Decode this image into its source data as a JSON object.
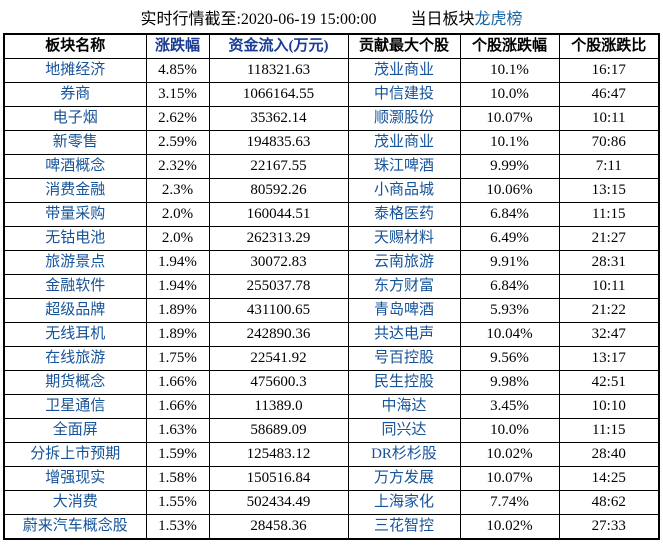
{
  "titlebar": {
    "quote_time_label": "实时行情截至:2020-06-19 15:00:00",
    "board_prefix": "当日板块",
    "board_link": "龙虎榜"
  },
  "colors": {
    "name_link_blue": "#15539A",
    "sorted_header_navy": "#1B3C94",
    "title_link_blue": "#1666A6",
    "border_black": "#000000",
    "background": "#ffffff"
  },
  "table": {
    "columns": [
      {
        "key": "sector",
        "label": "板块名称",
        "sorted": false
      },
      {
        "key": "change",
        "label": "涨跌幅",
        "sorted": true
      },
      {
        "key": "inflow",
        "label": "资金流入(万元)",
        "sorted": true
      },
      {
        "key": "top_stock",
        "label": "贡献最大个股",
        "sorted": false
      },
      {
        "key": "stock_change",
        "label": "个股涨跌幅",
        "sorted": false
      },
      {
        "key": "ratio",
        "label": "个股涨跌比",
        "sorted": false
      }
    ],
    "rows": [
      {
        "sector": "地摊经济",
        "change": "4.85%",
        "inflow": "118321.63",
        "top_stock": "茂业商业",
        "stock_change": "10.1%",
        "ratio": "16:17"
      },
      {
        "sector": "券商",
        "change": "3.15%",
        "inflow": "1066164.55",
        "top_stock": "中信建投",
        "stock_change": "10.0%",
        "ratio": "46:47"
      },
      {
        "sector": "电子烟",
        "change": "2.62%",
        "inflow": "35362.14",
        "top_stock": "顺灏股份",
        "stock_change": "10.07%",
        "ratio": "10:11"
      },
      {
        "sector": "新零售",
        "change": "2.59%",
        "inflow": "194835.63",
        "top_stock": "茂业商业",
        "stock_change": "10.1%",
        "ratio": "70:86"
      },
      {
        "sector": "啤酒概念",
        "change": "2.32%",
        "inflow": "22167.55",
        "top_stock": "珠江啤酒",
        "stock_change": "9.99%",
        "ratio": "7:11"
      },
      {
        "sector": "消费金融",
        "change": "2.3%",
        "inflow": "80592.26",
        "top_stock": "小商品城",
        "stock_change": "10.06%",
        "ratio": "13:15"
      },
      {
        "sector": "带量采购",
        "change": "2.0%",
        "inflow": "160044.51",
        "top_stock": "泰格医药",
        "stock_change": "6.84%",
        "ratio": "11:15"
      },
      {
        "sector": "无钴电池",
        "change": "2.0%",
        "inflow": "262313.29",
        "top_stock": "天赐材料",
        "stock_change": "6.49%",
        "ratio": "21:27"
      },
      {
        "sector": "旅游景点",
        "change": "1.94%",
        "inflow": "30072.83",
        "top_stock": "云南旅游",
        "stock_change": "9.91%",
        "ratio": "28:31"
      },
      {
        "sector": "金融软件",
        "change": "1.94%",
        "inflow": "255037.78",
        "top_stock": "东方财富",
        "stock_change": "6.84%",
        "ratio": "10:11"
      },
      {
        "sector": "超级品牌",
        "change": "1.89%",
        "inflow": "431100.65",
        "top_stock": "青岛啤酒",
        "stock_change": "5.93%",
        "ratio": "21:22"
      },
      {
        "sector": "无线耳机",
        "change": "1.89%",
        "inflow": "242890.36",
        "top_stock": "共达电声",
        "stock_change": "10.04%",
        "ratio": "32:47"
      },
      {
        "sector": "在线旅游",
        "change": "1.75%",
        "inflow": "22541.92",
        "top_stock": "号百控股",
        "stock_change": "9.56%",
        "ratio": "13:17"
      },
      {
        "sector": "期货概念",
        "change": "1.66%",
        "inflow": "475600.3",
        "top_stock": "民生控股",
        "stock_change": "9.98%",
        "ratio": "42:51"
      },
      {
        "sector": "卫星通信",
        "change": "1.66%",
        "inflow": "11389.0",
        "top_stock": "中海达",
        "stock_change": "3.45%",
        "ratio": "10:10"
      },
      {
        "sector": "全面屏",
        "change": "1.63%",
        "inflow": "58689.09",
        "top_stock": "同兴达",
        "stock_change": "10.0%",
        "ratio": "11:15"
      },
      {
        "sector": "分拆上市预期",
        "change": "1.59%",
        "inflow": "125483.12",
        "top_stock": "DR杉杉股",
        "stock_change": "10.02%",
        "ratio": "28:40"
      },
      {
        "sector": "增强现实",
        "change": "1.58%",
        "inflow": "150516.84",
        "top_stock": "万方发展",
        "stock_change": "10.07%",
        "ratio": "14:25"
      },
      {
        "sector": "大消费",
        "change": "1.55%",
        "inflow": "502434.49",
        "top_stock": "上海家化",
        "stock_change": "7.74%",
        "ratio": "48:62"
      },
      {
        "sector": "蔚来汽车概念股",
        "change": "1.53%",
        "inflow": "28458.36",
        "top_stock": "三花智控",
        "stock_change": "10.02%",
        "ratio": "27:33"
      }
    ]
  }
}
